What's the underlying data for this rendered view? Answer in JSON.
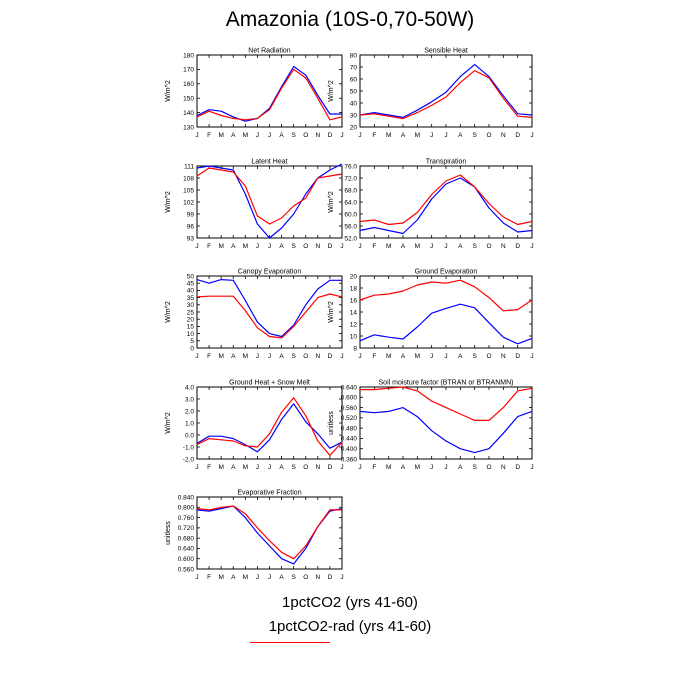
{
  "title": "Amazonia (10S-0,70-50W)",
  "legend": [
    {
      "label": "1pctCO2 (yrs 41-60)",
      "color": "#0000ff"
    },
    {
      "label": "1pctCO2-rad (yrs 41-60)",
      "color": "#ff0000"
    }
  ],
  "colors": {
    "series_1": "#0000ff",
    "series_2": "#ff0000"
  },
  "chart_data": [
    {
      "type": "line",
      "title": "Net Radiation",
      "ylabel": "W/m^2",
      "categories": [
        "J",
        "F",
        "M",
        "A",
        "M",
        "J",
        "J",
        "A",
        "S",
        "O",
        "N",
        "D",
        "J"
      ],
      "ylim": [
        130,
        180
      ],
      "yticks": [
        130,
        140,
        150,
        160,
        170,
        180
      ],
      "ytick_labels": [
        "130",
        "140",
        "150",
        "160",
        "170",
        "180"
      ],
      "series": [
        {
          "values": [
            138,
            142,
            141,
            137,
            134,
            136,
            143,
            158,
            172,
            166,
            152,
            139,
            139
          ]
        },
        {
          "values": [
            137,
            141,
            138,
            136,
            135,
            136,
            142,
            157,
            170,
            164,
            150,
            135,
            137
          ]
        }
      ]
    },
    {
      "type": "line",
      "title": "Sensible Heat",
      "ylabel": "W/m^2",
      "categories": [
        "J",
        "F",
        "M",
        "A",
        "M",
        "J",
        "J",
        "A",
        "S",
        "O",
        "N",
        "D",
        "J"
      ],
      "ylim": [
        20,
        80
      ],
      "yticks": [
        20,
        30,
        40,
        50,
        60,
        70,
        80
      ],
      "ytick_labels": [
        "20",
        "30",
        "40",
        "50",
        "60",
        "70",
        "80"
      ],
      "series": [
        {
          "values": [
            30,
            32,
            30,
            28,
            34,
            41,
            49,
            62,
            72,
            62,
            46,
            31,
            30
          ]
        },
        {
          "values": [
            30,
            31,
            29,
            27,
            32,
            38,
            45,
            57,
            67,
            61,
            44,
            29,
            28
          ]
        }
      ]
    },
    {
      "type": "line",
      "title": "Latent Heat",
      "ylabel": "W/m^2",
      "categories": [
        "J",
        "F",
        "M",
        "A",
        "M",
        "J",
        "J",
        "A",
        "S",
        "O",
        "N",
        "D",
        "J"
      ],
      "ylim": [
        93,
        111
      ],
      "yticks": [
        93,
        96,
        99,
        102,
        105,
        108,
        111
      ],
      "ytick_labels": [
        "93",
        "96",
        "99",
        "102",
        "105",
        "108",
        "111"
      ],
      "series": [
        {
          "values": [
            110.5,
            111,
            110.5,
            110,
            104,
            96.5,
            93,
            95.5,
            99,
            104,
            108,
            110,
            111.5
          ]
        },
        {
          "values": [
            108.5,
            110.5,
            110,
            109.5,
            106,
            98.5,
            96.5,
            98,
            101,
            103,
            108,
            108.5,
            109
          ]
        }
      ]
    },
    {
      "type": "line",
      "title": "Transpiration",
      "ylabel": "W/m^2",
      "categories": [
        "J",
        "F",
        "M",
        "A",
        "M",
        "J",
        "J",
        "A",
        "S",
        "O",
        "N",
        "D",
        "J"
      ],
      "ylim": [
        52,
        76
      ],
      "yticks": [
        52,
        56,
        60,
        64,
        68,
        72,
        76
      ],
      "ytick_labels": [
        "52.0",
        "56.0",
        "60.0",
        "64.0",
        "68.0",
        "72.0",
        "76.0"
      ],
      "series": [
        {
          "values": [
            54.5,
            55.5,
            54.5,
            53.5,
            58,
            65,
            70,
            72,
            69,
            62,
            57,
            54,
            54.5
          ]
        },
        {
          "values": [
            57.5,
            58,
            56.5,
            57,
            60.5,
            66.5,
            71,
            73,
            69,
            63.5,
            59,
            56.5,
            57.5
          ]
        }
      ]
    },
    {
      "type": "line",
      "title": "Canopy Evaporation",
      "ylabel": "W/m^2",
      "categories": [
        "J",
        "F",
        "M",
        "A",
        "M",
        "J",
        "J",
        "A",
        "S",
        "O",
        "N",
        "D",
        "J"
      ],
      "ylim": [
        0,
        50
      ],
      "yticks": [
        0,
        5,
        10,
        15,
        20,
        25,
        30,
        35,
        40,
        45,
        50
      ],
      "ytick_labels": [
        "0",
        "5",
        "10",
        "15",
        "20",
        "25",
        "30",
        "35",
        "40",
        "45",
        "50"
      ],
      "series": [
        {
          "values": [
            47.5,
            45,
            47.5,
            47,
            33,
            18,
            10,
            8,
            16,
            30,
            41,
            47,
            47
          ]
        },
        {
          "values": [
            35.5,
            36,
            36,
            36,
            26,
            14,
            8,
            7,
            15,
            25,
            35,
            37.5,
            35.5
          ]
        }
      ]
    },
    {
      "type": "line",
      "title": "Ground Evaporation",
      "ylabel": "W/m^2",
      "categories": [
        "J",
        "F",
        "M",
        "A",
        "M",
        "J",
        "J",
        "A",
        "S",
        "O",
        "N",
        "D",
        "J"
      ],
      "ylim": [
        8,
        20
      ],
      "yticks": [
        8,
        10,
        12,
        14,
        16,
        18,
        20
      ],
      "ytick_labels": [
        "8",
        "10",
        "12",
        "14",
        "16",
        "18",
        "20"
      ],
      "series": [
        {
          "values": [
            9.2,
            10.2,
            9.8,
            9.5,
            11.5,
            13.8,
            14.6,
            15.3,
            14.7,
            12.2,
            9.8,
            8.7,
            9.6
          ]
        },
        {
          "values": [
            16,
            16.8,
            17,
            17.5,
            18.5,
            19,
            18.8,
            19.3,
            18.2,
            16.4,
            14.2,
            14.4,
            16
          ]
        }
      ]
    },
    {
      "type": "line",
      "title": "Ground Heat + Snow Melt",
      "ylabel": "W/m^2",
      "categories": [
        "J",
        "F",
        "M",
        "A",
        "M",
        "J",
        "J",
        "A",
        "S",
        "O",
        "N",
        "D",
        "J"
      ],
      "ylim": [
        -2,
        4
      ],
      "yticks": [
        -2,
        -1,
        0,
        1,
        2,
        3,
        4
      ],
      "ytick_labels": [
        "-2.0",
        "-1.0",
        "0.0",
        "1.0",
        "2.0",
        "3.0",
        "4.0"
      ],
      "series": [
        {
          "values": [
            -0.7,
            -0.1,
            -0.1,
            -0.3,
            -0.8,
            -1.4,
            -0.4,
            1.3,
            2.6,
            1.1,
            0.1,
            -1.1,
            -0.6
          ]
        },
        {
          "values": [
            -0.8,
            -0.3,
            -0.4,
            -0.5,
            -0.9,
            -1,
            0.1,
            1.9,
            3.1,
            1.6,
            -0.5,
            -1.7,
            -0.6
          ]
        }
      ]
    },
    {
      "type": "line",
      "title": "Soil moisture factor (BTRAN or BTRANMN)",
      "ylabel": "unitless",
      "categories": [
        "J",
        "F",
        "M",
        "A",
        "M",
        "J",
        "J",
        "A",
        "S",
        "O",
        "N",
        "D",
        "J"
      ],
      "ylim": [
        0.36,
        0.64
      ],
      "yticks": [
        0.36,
        0.4,
        0.44,
        0.48,
        0.52,
        0.56,
        0.6,
        0.64
      ],
      "ytick_labels": [
        "0.360",
        "0.400",
        "0.440",
        "0.480",
        "0.520",
        "0.560",
        "0.600",
        "0.640"
      ],
      "series": [
        {
          "values": [
            0.545,
            0.54,
            0.545,
            0.56,
            0.525,
            0.47,
            0.43,
            0.4,
            0.385,
            0.4,
            0.46,
            0.525,
            0.545
          ]
        },
        {
          "values": [
            0.63,
            0.63,
            0.635,
            0.64,
            0.625,
            0.585,
            0.56,
            0.535,
            0.51,
            0.51,
            0.56,
            0.625,
            0.635
          ]
        }
      ]
    },
    {
      "type": "line",
      "title": "Evaporative Fraction",
      "ylabel": "unitless",
      "categories": [
        "J",
        "F",
        "M",
        "A",
        "M",
        "J",
        "J",
        "A",
        "S",
        "O",
        "N",
        "D",
        "J"
      ],
      "ylim": [
        0.56,
        0.84
      ],
      "yticks": [
        0.56,
        0.6,
        0.64,
        0.68,
        0.72,
        0.76,
        0.8,
        0.84
      ],
      "ytick_labels": [
        "0.560",
        "0.600",
        "0.640",
        "0.680",
        "0.720",
        "0.760",
        "0.800",
        "0.840"
      ],
      "series": [
        {
          "values": [
            0.79,
            0.785,
            0.795,
            0.805,
            0.76,
            0.7,
            0.65,
            0.6,
            0.58,
            0.64,
            0.725,
            0.785,
            0.795
          ]
        },
        {
          "values": [
            0.795,
            0.79,
            0.8,
            0.805,
            0.775,
            0.72,
            0.67,
            0.625,
            0.6,
            0.65,
            0.725,
            0.79,
            0.79
          ]
        }
      ]
    }
  ]
}
